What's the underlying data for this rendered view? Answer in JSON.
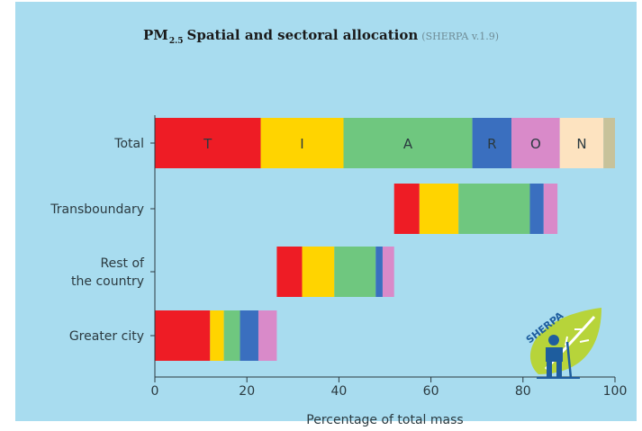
{
  "title": {
    "main": "PM",
    "subscript": "2.5",
    "rest": "Spatial and sectoral allocation",
    "version": "(SHERPA v.1.9)"
  },
  "logo_text": "SHERPA",
  "chart_data": {
    "type": "bar",
    "orientation": "horizontal",
    "stacked": true,
    "xlabel": "Percentage of total mass",
    "xlim": [
      0,
      100
    ],
    "xticks": [
      0,
      20,
      40,
      60,
      80,
      100
    ],
    "categories": [
      "Total",
      "Transboundary",
      "Rest of the country",
      "Greater city"
    ],
    "category_lines": [
      [
        "Total"
      ],
      [
        "Transboundary"
      ],
      [
        "Rest of",
        "the country"
      ],
      [
        "Greater city"
      ]
    ],
    "segment_colors": [
      "#ee1c25",
      "#ffd400",
      "#6fc77f",
      "#3a6fbf",
      "#d98ac9",
      "#fde3c0",
      "#c7c29a"
    ],
    "segment_labels": [
      "T",
      "I",
      "A",
      "R",
      "O",
      "N",
      ""
    ],
    "rows": [
      {
        "category": "Total",
        "segments": [
          [
            0,
            23
          ],
          [
            23,
            41
          ],
          [
            41,
            69
          ],
          [
            69,
            77.5
          ],
          [
            77.5,
            88
          ],
          [
            88,
            97.5
          ],
          [
            97.5,
            100
          ]
        ],
        "labeled": true
      },
      {
        "category": "Transboundary",
        "segments": [
          [
            52,
            57.5
          ],
          [
            57.5,
            66
          ],
          [
            66,
            81.5
          ],
          [
            81.5,
            84.5
          ],
          [
            84.5,
            87.5
          ]
        ]
      },
      {
        "category": "Rest of the country",
        "segments": [
          [
            26.5,
            32
          ],
          [
            32,
            39
          ],
          [
            39,
            48
          ],
          [
            48,
            49.5
          ],
          [
            49.5,
            52
          ]
        ]
      },
      {
        "category": "Greater city",
        "segments": [
          [
            0,
            12
          ],
          [
            12,
            15
          ],
          [
            15,
            18.5
          ],
          [
            18.5,
            22.5
          ],
          [
            22.5,
            26.5
          ]
        ]
      }
    ]
  }
}
